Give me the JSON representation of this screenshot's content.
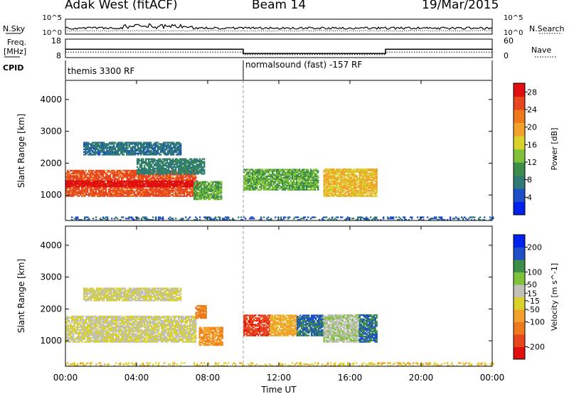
{
  "header": {
    "station": "Adak West (fitACF)",
    "beam": "Beam 14",
    "date": "19/Mar/2015"
  },
  "labels": {
    "nsky": "N.Sky",
    "nsearch": "N.Search",
    "freq_line1": "Freq.",
    "freq_line2": "[MHz]",
    "nave": "Nave",
    "cpid": "CPID",
    "exp_tick": "10^5",
    "zero_tick": "10^0"
  },
  "cpid_segments": [
    {
      "label": "themis 3300 RF",
      "start": 0,
      "end": 10
    },
    {
      "label": "normalsound (fast) -157 RF",
      "start": 10,
      "end": 24
    }
  ],
  "chart_data": [
    {
      "type": "heatmap",
      "title": "Power",
      "xlabel": "Time UT",
      "ylabel": "Slant Range [km]",
      "xlim": [
        0,
        24
      ],
      "ylim": [
        200,
        4600
      ],
      "x_ticks": [
        "00:00",
        "04:00",
        "08:00",
        "12:00",
        "16:00",
        "20:00",
        "00:00"
      ],
      "y_ticks": [
        1000,
        2000,
        3000,
        4000
      ],
      "colorbar": {
        "label": "Power [dB]",
        "ticks": [
          4,
          8,
          12,
          16,
          20,
          24,
          28
        ],
        "range": [
          0,
          30
        ],
        "colors": [
          "#0022ee",
          "#1f4fc8",
          "#2f7a74",
          "#3c8c4a",
          "#7fc23a",
          "#d9d22a",
          "#f2a12a",
          "#ef7a1e",
          "#e8461e",
          "#e01010"
        ]
      },
      "regions": [
        {
          "t0": 0.0,
          "t1": 7.3,
          "r0": 950,
          "r1": 1750,
          "value": 25
        },
        {
          "t0": 0.0,
          "t1": 7.6,
          "r0": 1250,
          "r1": 1450,
          "value": 29
        },
        {
          "t0": 1.0,
          "t1": 6.5,
          "r0": 2250,
          "r1": 2650,
          "value": 7
        },
        {
          "t0": 4.0,
          "t1": 7.8,
          "r0": 1650,
          "r1": 2150,
          "value": 8
        },
        {
          "t0": 7.2,
          "t1": 8.8,
          "r0": 850,
          "r1": 1400,
          "value": 12
        },
        {
          "t0": 10.0,
          "t1": 14.2,
          "r0": 1150,
          "r1": 1800,
          "value": 12
        },
        {
          "t0": 14.5,
          "t1": 17.5,
          "r0": 950,
          "r1": 1800,
          "value": 18
        },
        {
          "t0": 0.0,
          "t1": 24.0,
          "r0": 200,
          "r1": 320,
          "value": 6
        }
      ]
    },
    {
      "type": "heatmap",
      "title": "Velocity",
      "xlabel": "Time UT",
      "ylabel": "Slant Range [km]",
      "xlim": [
        0,
        24
      ],
      "ylim": [
        200,
        4600
      ],
      "x_ticks": [
        "00:00",
        "04:00",
        "08:00",
        "12:00",
        "16:00",
        "20:00",
        "00:00"
      ],
      "y_ticks": [
        1000,
        2000,
        3000,
        4000
      ],
      "colorbar": {
        "label": "Velocity [m s^-1]",
        "ticks": [
          200,
          100,
          50,
          15,
          -15,
          -50,
          -100,
          -200
        ],
        "range": [
          -250,
          250
        ],
        "colors": [
          "#e01010",
          "#e8461e",
          "#ef7a1e",
          "#f2a12a",
          "#d9d22a",
          "#c0c0b8",
          "#7fc23a",
          "#3c8c4a",
          "#1f4fc8",
          "#0022ee"
        ]
      },
      "regions": [
        {
          "t0": 0.0,
          "t1": 7.3,
          "r0": 950,
          "r1": 1750,
          "value": 0
        },
        {
          "t0": 1.0,
          "t1": 6.5,
          "r0": 2250,
          "r1": 2650,
          "value": 0
        },
        {
          "t0": 7.3,
          "t1": 7.9,
          "r0": 1700,
          "r1": 2100,
          "value": -120
        },
        {
          "t0": 7.5,
          "t1": 8.8,
          "r0": 850,
          "r1": 1400,
          "value": -90
        },
        {
          "t0": 10.0,
          "t1": 11.5,
          "r0": 1150,
          "r1": 1800,
          "value": -180
        },
        {
          "t0": 11.5,
          "t1": 13.0,
          "r0": 1150,
          "r1": 1800,
          "value": -70
        },
        {
          "t0": 13.0,
          "t1": 14.5,
          "r0": 1150,
          "r1": 1800,
          "value": 150
        },
        {
          "t0": 14.5,
          "t1": 16.5,
          "r0": 950,
          "r1": 1800,
          "value": 40
        },
        {
          "t0": 16.5,
          "t1": 17.5,
          "r0": 950,
          "r1": 1800,
          "value": 150
        },
        {
          "t0": 0.0,
          "t1": 24.0,
          "r0": 200,
          "r1": 320,
          "value": -40
        }
      ]
    },
    {
      "type": "line",
      "title": "Frequency",
      "ylabel": "Freq. [MHz]",
      "y_ticks": [
        8,
        18
      ],
      "x": [
        0,
        10,
        10,
        18,
        18,
        24
      ],
      "y": [
        12.5,
        12.5,
        10.2,
        10.2,
        12.5,
        12.5
      ],
      "series": [
        {
          "name": "Nave",
          "y_ticks": [
            0,
            60
          ],
          "values": [
            18,
            18,
            10,
            10,
            18,
            18
          ]
        }
      ]
    }
  ]
}
